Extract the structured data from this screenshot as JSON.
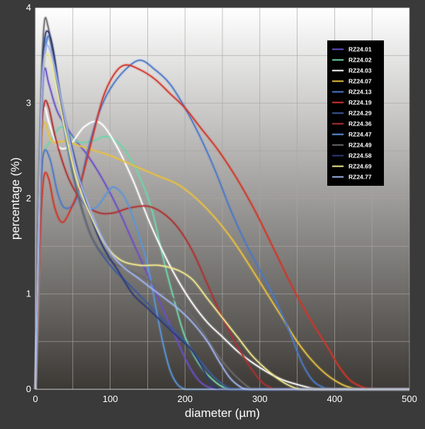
{
  "chart_data": {
    "type": "line",
    "title": "",
    "xlabel": "diameter (µm)",
    "ylabel": "percentage (%)",
    "xlim": [
      0,
      500
    ],
    "ylim": [
      0,
      4
    ],
    "x_ticks": [
      0,
      100,
      200,
      300,
      400,
      500
    ],
    "y_ticks": [
      0,
      1,
      2,
      3,
      4
    ],
    "grid": true,
    "legend_position": "top-right",
    "background": {
      "top": "#ffffff",
      "bottom": "#3c3935",
      "frame": "#3a3a3a"
    },
    "series": [
      {
        "name": "RZ24.01",
        "color": "#6a4fc8",
        "points": [
          [
            0,
            0
          ],
          [
            4,
            1.2
          ],
          [
            8,
            2.8
          ],
          [
            12,
            3.35
          ],
          [
            18,
            3.2
          ],
          [
            30,
            2.9
          ],
          [
            50,
            2.65
          ],
          [
            70,
            2.45
          ],
          [
            90,
            2.2
          ],
          [
            110,
            1.9
          ],
          [
            130,
            1.55
          ],
          [
            150,
            1.2
          ],
          [
            170,
            0.85
          ],
          [
            190,
            0.5
          ],
          [
            205,
            0.25
          ],
          [
            220,
            0.08
          ],
          [
            235,
            0.01
          ],
          [
            250,
            0
          ]
        ]
      },
      {
        "name": "RZ24.02",
        "color": "#6fd4a8",
        "points": [
          [
            0,
            0
          ],
          [
            4,
            1.0
          ],
          [
            8,
            2.3
          ],
          [
            12,
            2.5
          ],
          [
            20,
            2.6
          ],
          [
            35,
            2.75
          ],
          [
            55,
            2.6
          ],
          [
            75,
            2.6
          ],
          [
            95,
            2.65
          ],
          [
            115,
            2.55
          ],
          [
            135,
            2.3
          ],
          [
            155,
            1.9
          ],
          [
            170,
            1.4
          ],
          [
            185,
            0.95
          ],
          [
            200,
            0.55
          ],
          [
            220,
            0.25
          ],
          [
            240,
            0.08
          ],
          [
            255,
            0.01
          ],
          [
            270,
            0
          ]
        ]
      },
      {
        "name": "RZ24.03",
        "color": "#ffffff",
        "points": [
          [
            0,
            0
          ],
          [
            4,
            1.2
          ],
          [
            8,
            2.6
          ],
          [
            12,
            2.95
          ],
          [
            18,
            2.8
          ],
          [
            30,
            2.55
          ],
          [
            45,
            2.55
          ],
          [
            65,
            2.75
          ],
          [
            85,
            2.8
          ],
          [
            105,
            2.6
          ],
          [
            130,
            2.2
          ],
          [
            150,
            1.8
          ],
          [
            170,
            1.45
          ],
          [
            190,
            1.15
          ],
          [
            210,
            0.9
          ],
          [
            230,
            0.7
          ],
          [
            250,
            0.55
          ],
          [
            270,
            0.4
          ],
          [
            290,
            0.28
          ],
          [
            310,
            0.18
          ],
          [
            330,
            0.1
          ],
          [
            350,
            0.05
          ],
          [
            370,
            0.01
          ],
          [
            380,
            0
          ]
        ]
      },
      {
        "name": "RZ24.07",
        "color": "#e8c040",
        "points": [
          [
            0,
            0
          ],
          [
            4,
            1.3
          ],
          [
            8,
            2.5
          ],
          [
            12,
            2.8
          ],
          [
            22,
            2.6
          ],
          [
            40,
            2.6
          ],
          [
            60,
            2.55
          ],
          [
            80,
            2.5
          ],
          [
            100,
            2.45
          ],
          [
            130,
            2.35
          ],
          [
            160,
            2.25
          ],
          [
            190,
            2.15
          ],
          [
            215,
            2.0
          ],
          [
            240,
            1.8
          ],
          [
            265,
            1.55
          ],
          [
            290,
            1.25
          ],
          [
            310,
            1.0
          ],
          [
            330,
            0.75
          ],
          [
            350,
            0.5
          ],
          [
            370,
            0.3
          ],
          [
            390,
            0.15
          ],
          [
            410,
            0.05
          ],
          [
            425,
            0.01
          ],
          [
            435,
            0
          ]
        ]
      },
      {
        "name": "RZ24.13",
        "color": "#4a78c8",
        "points": [
          [
            0,
            0
          ],
          [
            4,
            1.2
          ],
          [
            8,
            2.2
          ],
          [
            12,
            2.5
          ],
          [
            20,
            2.4
          ],
          [
            30,
            2.05
          ],
          [
            40,
            1.9
          ],
          [
            55,
            2.0
          ],
          [
            70,
            2.5
          ],
          [
            85,
            2.9
          ],
          [
            100,
            3.15
          ],
          [
            120,
            3.35
          ],
          [
            140,
            3.45
          ],
          [
            160,
            3.35
          ],
          [
            180,
            3.2
          ],
          [
            200,
            2.95
          ],
          [
            220,
            2.65
          ],
          [
            240,
            2.3
          ],
          [
            260,
            1.9
          ],
          [
            280,
            1.55
          ],
          [
            300,
            1.25
          ],
          [
            320,
            0.95
          ],
          [
            340,
            0.6
          ],
          [
            355,
            0.3
          ],
          [
            370,
            0.1
          ],
          [
            385,
            0.02
          ],
          [
            400,
            0
          ]
        ]
      },
      {
        "name": "RZ24.19",
        "color": "#d23528",
        "points": [
          [
            0,
            0
          ],
          [
            4,
            1.0
          ],
          [
            8,
            1.9
          ],
          [
            12,
            2.25
          ],
          [
            18,
            2.2
          ],
          [
            26,
            1.9
          ],
          [
            36,
            1.75
          ],
          [
            48,
            1.9
          ],
          [
            60,
            2.15
          ],
          [
            75,
            2.6
          ],
          [
            90,
            3.05
          ],
          [
            105,
            3.3
          ],
          [
            120,
            3.4
          ],
          [
            140,
            3.35
          ],
          [
            160,
            3.25
          ],
          [
            180,
            3.1
          ],
          [
            200,
            2.95
          ],
          [
            220,
            2.75
          ],
          [
            245,
            2.5
          ],
          [
            270,
            2.2
          ],
          [
            295,
            1.85
          ],
          [
            320,
            1.45
          ],
          [
            345,
            1.05
          ],
          [
            370,
            0.7
          ],
          [
            390,
            0.45
          ],
          [
            405,
            0.25
          ],
          [
            420,
            0.1
          ],
          [
            435,
            0.03
          ],
          [
            450,
            0
          ]
        ]
      },
      {
        "name": "RZ24.29",
        "color": "#3c5a9a",
        "points": [
          [
            0,
            0
          ],
          [
            4,
            1.5
          ],
          [
            8,
            3.0
          ],
          [
            12,
            3.5
          ],
          [
            18,
            3.7
          ],
          [
            26,
            3.4
          ],
          [
            40,
            2.7
          ],
          [
            55,
            2.1
          ],
          [
            75,
            1.6
          ],
          [
            100,
            1.3
          ],
          [
            125,
            1.1
          ],
          [
            150,
            0.9
          ],
          [
            175,
            0.7
          ],
          [
            200,
            0.5
          ],
          [
            220,
            0.3
          ],
          [
            240,
            0.12
          ],
          [
            255,
            0.03
          ],
          [
            265,
            0
          ]
        ]
      },
      {
        "name": "RZ24.36",
        "color": "#b03030",
        "points": [
          [
            0,
            0
          ],
          [
            4,
            1.4
          ],
          [
            8,
            2.6
          ],
          [
            12,
            3.0
          ],
          [
            18,
            2.95
          ],
          [
            28,
            2.6
          ],
          [
            45,
            2.2
          ],
          [
            65,
            1.95
          ],
          [
            85,
            1.85
          ],
          [
            105,
            1.85
          ],
          [
            125,
            1.9
          ],
          [
            150,
            1.92
          ],
          [
            170,
            1.85
          ],
          [
            190,
            1.7
          ],
          [
            210,
            1.45
          ],
          [
            230,
            1.1
          ],
          [
            250,
            0.75
          ],
          [
            270,
            0.45
          ],
          [
            290,
            0.2
          ],
          [
            305,
            0.06
          ],
          [
            320,
            0
          ]
        ]
      },
      {
        "name": "RZ24.47",
        "color": "#5b95d8",
        "points": [
          [
            0,
            0
          ],
          [
            4,
            1.5
          ],
          [
            8,
            3.0
          ],
          [
            12,
            3.5
          ],
          [
            17,
            3.7
          ],
          [
            24,
            3.5
          ],
          [
            35,
            2.9
          ],
          [
            50,
            2.25
          ],
          [
            65,
            1.95
          ],
          [
            80,
            1.9
          ],
          [
            95,
            2.05
          ],
          [
            105,
            2.12
          ],
          [
            120,
            2.0
          ],
          [
            135,
            1.7
          ],
          [
            150,
            1.3
          ],
          [
            160,
            0.9
          ],
          [
            170,
            0.5
          ],
          [
            180,
            0.2
          ],
          [
            190,
            0.05
          ],
          [
            200,
            0
          ]
        ]
      },
      {
        "name": "RZ24.49",
        "color": "#6a6a6a",
        "points": [
          [
            0,
            0
          ],
          [
            4,
            1.6
          ],
          [
            8,
            3.2
          ],
          [
            12,
            3.85
          ],
          [
            17,
            3.8
          ],
          [
            25,
            3.45
          ],
          [
            40,
            2.7
          ],
          [
            55,
            2.1
          ],
          [
            75,
            1.6
          ],
          [
            100,
            1.35
          ],
          [
            125,
            1.25
          ],
          [
            150,
            1.15
          ],
          [
            175,
            1.0
          ],
          [
            200,
            0.85
          ],
          [
            220,
            0.65
          ],
          [
            240,
            0.4
          ],
          [
            260,
            0.2
          ],
          [
            280,
            0.05
          ],
          [
            290,
            0
          ]
        ]
      },
      {
        "name": "RZ24.58",
        "color": "#2e3a78",
        "points": [
          [
            0,
            0
          ],
          [
            4,
            1.6
          ],
          [
            8,
            3.1
          ],
          [
            12,
            3.65
          ],
          [
            17,
            3.75
          ],
          [
            24,
            3.55
          ],
          [
            35,
            3.0
          ],
          [
            50,
            2.5
          ],
          [
            70,
            1.9
          ],
          [
            90,
            1.5
          ],
          [
            110,
            1.25
          ],
          [
            130,
            1.0
          ],
          [
            150,
            0.85
          ],
          [
            170,
            0.7
          ],
          [
            190,
            0.55
          ],
          [
            210,
            0.4
          ],
          [
            225,
            0.2
          ],
          [
            235,
            0.05
          ],
          [
            245,
            0
          ]
        ]
      },
      {
        "name": "RZ24.69",
        "color": "#f0e890",
        "points": [
          [
            0,
            0
          ],
          [
            4,
            1.5
          ],
          [
            8,
            3.0
          ],
          [
            12,
            3.45
          ],
          [
            18,
            3.5
          ],
          [
            26,
            3.25
          ],
          [
            40,
            2.7
          ],
          [
            55,
            2.2
          ],
          [
            75,
            1.8
          ],
          [
            95,
            1.5
          ],
          [
            115,
            1.35
          ],
          [
            140,
            1.3
          ],
          [
            165,
            1.3
          ],
          [
            190,
            1.25
          ],
          [
            210,
            1.15
          ],
          [
            230,
            0.95
          ],
          [
            250,
            0.75
          ],
          [
            270,
            0.55
          ],
          [
            290,
            0.35
          ],
          [
            310,
            0.2
          ],
          [
            330,
            0.08
          ],
          [
            345,
            0.02
          ],
          [
            355,
            0
          ]
        ]
      },
      {
        "name": "RZ24.77",
        "color": "#9fb2ee",
        "points": [
          [
            0,
            0
          ],
          [
            4,
            1.5
          ],
          [
            8,
            3.0
          ],
          [
            12,
            3.5
          ],
          [
            17,
            3.6
          ],
          [
            25,
            3.4
          ],
          [
            38,
            2.9
          ],
          [
            55,
            2.3
          ],
          [
            75,
            1.85
          ],
          [
            95,
            1.5
          ],
          [
            115,
            1.3
          ],
          [
            140,
            1.15
          ],
          [
            165,
            1.0
          ],
          [
            190,
            0.85
          ],
          [
            210,
            0.7
          ],
          [
            230,
            0.5
          ],
          [
            245,
            0.3
          ],
          [
            260,
            0.12
          ],
          [
            275,
            0.02
          ],
          [
            285,
            0
          ]
        ]
      }
    ]
  }
}
